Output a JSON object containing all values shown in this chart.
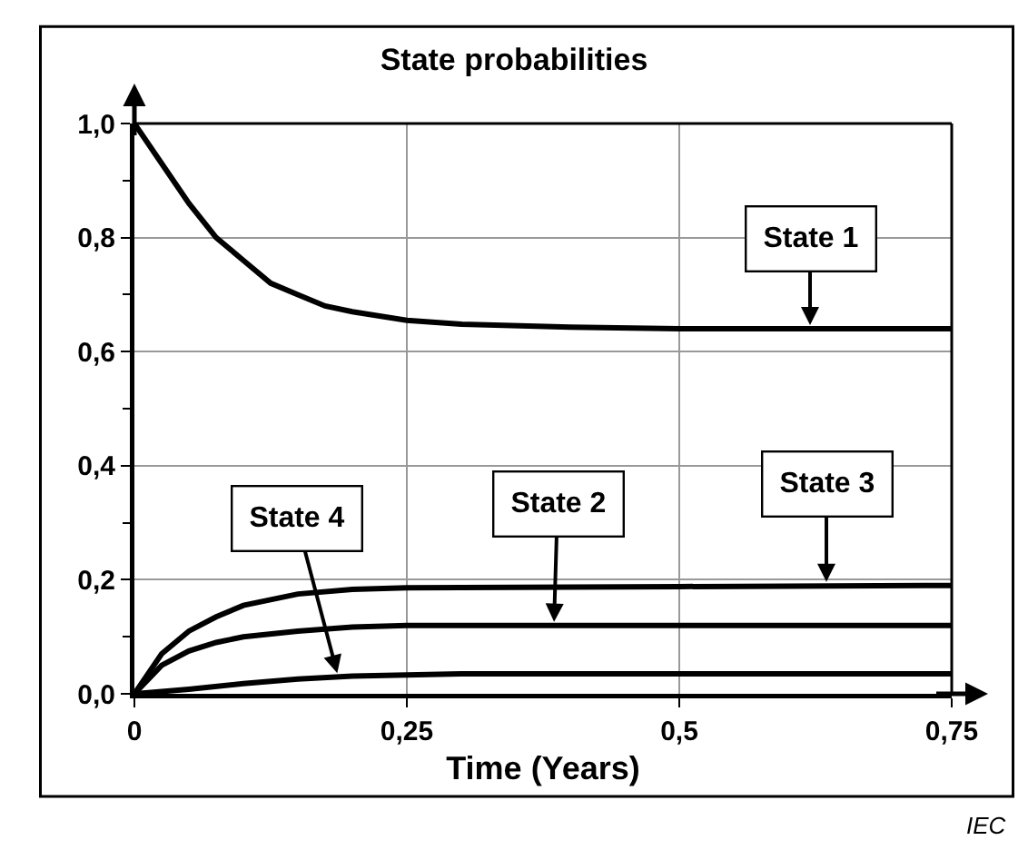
{
  "chart_data": {
    "type": "line",
    "title": "State probabilities",
    "xlabel": "Time (Years)",
    "xlim": [
      0,
      0.75
    ],
    "xticks": [
      0,
      {
        "value": 0.25,
        "label": "0,25"
      },
      {
        "value": 0.5,
        "label": "0,5"
      },
      {
        "value": 0.75,
        "label": "0,75"
      }
    ],
    "ylim": [
      0,
      1
    ],
    "yticks": [
      {
        "value": 0,
        "label": "0,0"
      },
      {
        "value": 0.2,
        "label": "0,2"
      },
      {
        "value": 0.4,
        "label": "0,4"
      },
      {
        "value": 0.6,
        "label": "0,6"
      },
      {
        "value": 0.8,
        "label": "0,8"
      },
      {
        "value": 1,
        "label": "1,0"
      }
    ],
    "grid": true,
    "marker": "none",
    "line_style": "solid",
    "series": [
      {
        "color": "#000000",
        "x": [
          0,
          0.025,
          0.05,
          0.075,
          0.1,
          0.125,
          0.15,
          0.175,
          0.2,
          0.25,
          0.3,
          0.4,
          0.5,
          0.75
        ],
        "values": [
          1,
          0.93,
          0.86,
          0.8,
          0.76,
          0.72,
          0.7,
          0.68,
          0.67,
          0.655,
          0.648,
          0.643,
          0.64,
          0.64
        ]
      },
      {
        "color": "#000000",
        "x": [
          0,
          0.025,
          0.05,
          0.075,
          0.1,
          0.15,
          0.2,
          0.25,
          0.75
        ],
        "values": [
          0,
          0.05,
          0.075,
          0.09,
          0.1,
          0.11,
          0.117,
          0.12,
          0.12
        ]
      },
      {
        "color": "#000000",
        "x": [
          0,
          0.025,
          0.05,
          0.075,
          0.1,
          0.125,
          0.15,
          0.2,
          0.25,
          0.5,
          0.75
        ],
        "values": [
          0,
          0.07,
          0.11,
          0.135,
          0.155,
          0.165,
          0.175,
          0.183,
          0.186,
          0.188,
          0.19
        ]
      },
      {
        "color": "#000000",
        "x": [
          0,
          0.05,
          0.1,
          0.15,
          0.2,
          0.25,
          0.3,
          0.75
        ],
        "values": [
          0,
          0.008,
          0.018,
          0.026,
          0.031,
          0.033,
          0.035,
          0.035
        ]
      }
    ],
    "annotations": [
      {
        "text": "State 1",
        "x": 0.62,
        "y": 0.64
      },
      {
        "text": "State 2",
        "x": 0.385,
        "y": 0.12
      },
      {
        "text": "State 3",
        "x": 0.635,
        "y": 0.19
      },
      {
        "text": "State 4",
        "x": 0.187,
        "y": 0.03
      },
      "IEC"
    ]
  }
}
